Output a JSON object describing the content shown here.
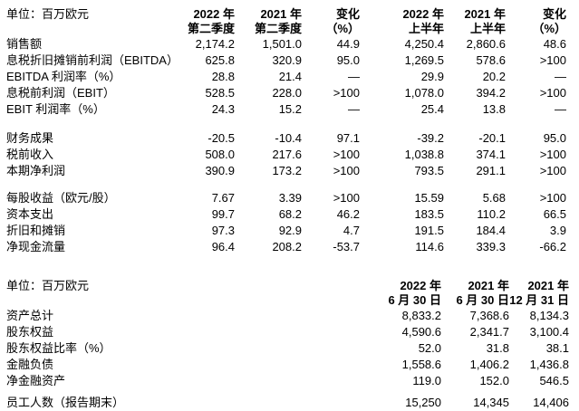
{
  "table1": {
    "unit_label": "单位：百万欧元",
    "col_headers": [
      {
        "line1": "2022 年",
        "line2": "第二季度"
      },
      {
        "line1": "2021 年",
        "line2": "第二季度"
      },
      {
        "line1": "变化",
        "line2": "（%）"
      },
      {
        "line1": "2022 年",
        "line2": "上半年"
      },
      {
        "line1": "2021 年",
        "line2": "上半年"
      },
      {
        "line1": "变化",
        "line2": "（%）"
      }
    ],
    "groups": [
      {
        "rows": [
          {
            "label": "销售额",
            "values": [
              "2,174.2",
              "1,501.0",
              "44.9",
              "4,250.4",
              "2,860.6",
              "48.6"
            ]
          },
          {
            "label": "息税折旧摊销前利润（EBITDA）",
            "values": [
              "625.8",
              "320.9",
              "95.0",
              "1,269.5",
              "578.6",
              ">100"
            ]
          },
          {
            "label": "EBITDA 利润率（%）",
            "values": [
              "28.8",
              "21.4",
              "—",
              "29.9",
              "20.2",
              "—"
            ]
          },
          {
            "label": "息税前利润（EBIT）",
            "values": [
              "528.5",
              "228.0",
              ">100",
              "1,078.0",
              "394.2",
              ">100"
            ]
          },
          {
            "label": "EBIT 利润率（%）",
            "values": [
              "24.3",
              "15.2",
              "—",
              "25.4",
              "13.8",
              "—"
            ]
          }
        ]
      },
      {
        "rows": [
          {
            "label": "财务成果",
            "values": [
              "-20.5",
              "-10.4",
              "97.1",
              "-39.2",
              "-20.1",
              "95.0"
            ]
          },
          {
            "label": "税前收入",
            "values": [
              "508.0",
              "217.6",
              ">100",
              "1,038.8",
              "374.1",
              ">100"
            ]
          },
          {
            "label": "本期净利润",
            "values": [
              "390.9",
              "173.2",
              ">100",
              "793.5",
              "291.1",
              ">100"
            ]
          }
        ]
      },
      {
        "rows": [
          {
            "label": "每股收益（欧元/股）",
            "values": [
              "7.67",
              "3.39",
              ">100",
              "15.59",
              "5.68",
              ">100"
            ]
          },
          {
            "label": "资本支出",
            "values": [
              "99.7",
              "68.2",
              "46.2",
              "183.5",
              "110.2",
              "66.5"
            ]
          },
          {
            "label": "折旧和摊销",
            "values": [
              "97.3",
              "92.9",
              "4.7",
              "191.5",
              "184.4",
              "3.9"
            ]
          },
          {
            "label": "净现金流量",
            "values": [
              "96.4",
              "208.2",
              "-53.7",
              "114.6",
              "339.3",
              "-66.2"
            ]
          }
        ]
      }
    ]
  },
  "table2": {
    "unit_label": "单位：百万欧元",
    "col_headers": [
      {
        "line1": "2022 年",
        "line2": "6 月 30 日"
      },
      {
        "line1": "2021 年",
        "line2": "6 月 30 日"
      },
      {
        "line1": "2021 年",
        "line2": "12 月 31 日"
      }
    ],
    "groups": [
      {
        "rows": [
          {
            "label": "资产总计",
            "values": [
              "8,833.2",
              "7,368.6",
              "8,134.3"
            ]
          },
          {
            "label": "股东权益",
            "values": [
              "4,590.6",
              "2,341.7",
              "3,100.4"
            ]
          },
          {
            "label": "股东权益比率（%）",
            "values": [
              "52.0",
              "31.8",
              "38.1"
            ]
          },
          {
            "label": "金融负债",
            "values": [
              "1,558.6",
              "1,406.2",
              "1,436.8"
            ]
          },
          {
            "label": "净金融资产",
            "values": [
              "119.0",
              "152.0",
              "546.5"
            ]
          }
        ]
      },
      {
        "rows": [
          {
            "label": "员工人数（报告期末）",
            "values": [
              "15,250",
              "14,345",
              "14,406"
            ]
          }
        ]
      }
    ]
  }
}
